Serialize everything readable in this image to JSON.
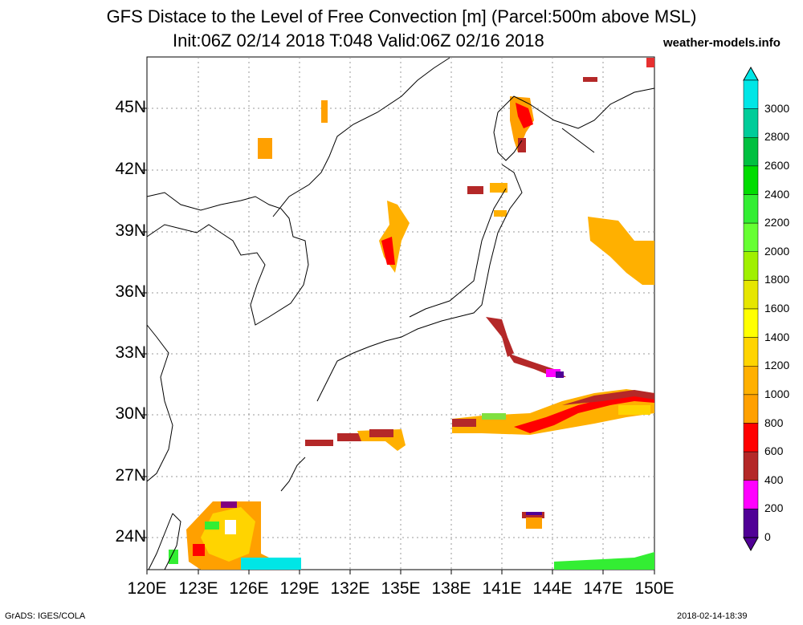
{
  "title_line1": "GFS Distace to the Level of Free Convection [m] (Parcel:500m above MSL)",
  "title_line2": "Init:06Z 02/14 2018 T:048 Valid:06Z 02/16 2018",
  "brand": "weather-models.info",
  "footer_left": "GrADS: IGES/COLA",
  "footer_right": "2018-02-14-18:39",
  "lat_labels": [
    "45N",
    "42N",
    "39N",
    "36N",
    "33N",
    "30N",
    "27N",
    "24N"
  ],
  "lon_labels": [
    "120E",
    "123E",
    "126E",
    "129E",
    "132E",
    "135E",
    "138E",
    "141E",
    "144E",
    "147E",
    "150E"
  ],
  "colorbar": {
    "labels": [
      "3000",
      "2800",
      "2600",
      "2400",
      "2200",
      "2000",
      "1800",
      "1600",
      "1400",
      "1200",
      "1000",
      "800",
      "600",
      "400",
      "200",
      "0"
    ],
    "colors": [
      "#00e6e6",
      "#00cc99",
      "#00c040",
      "#00dc00",
      "#33ee33",
      "#66ff33",
      "#a0f000",
      "#e6e600",
      "#ffff00",
      "#ffd400",
      "#ffb000",
      "#ffa000",
      "#ff0000",
      "#b42828",
      "#ff00ff",
      "#500096"
    ]
  }
}
